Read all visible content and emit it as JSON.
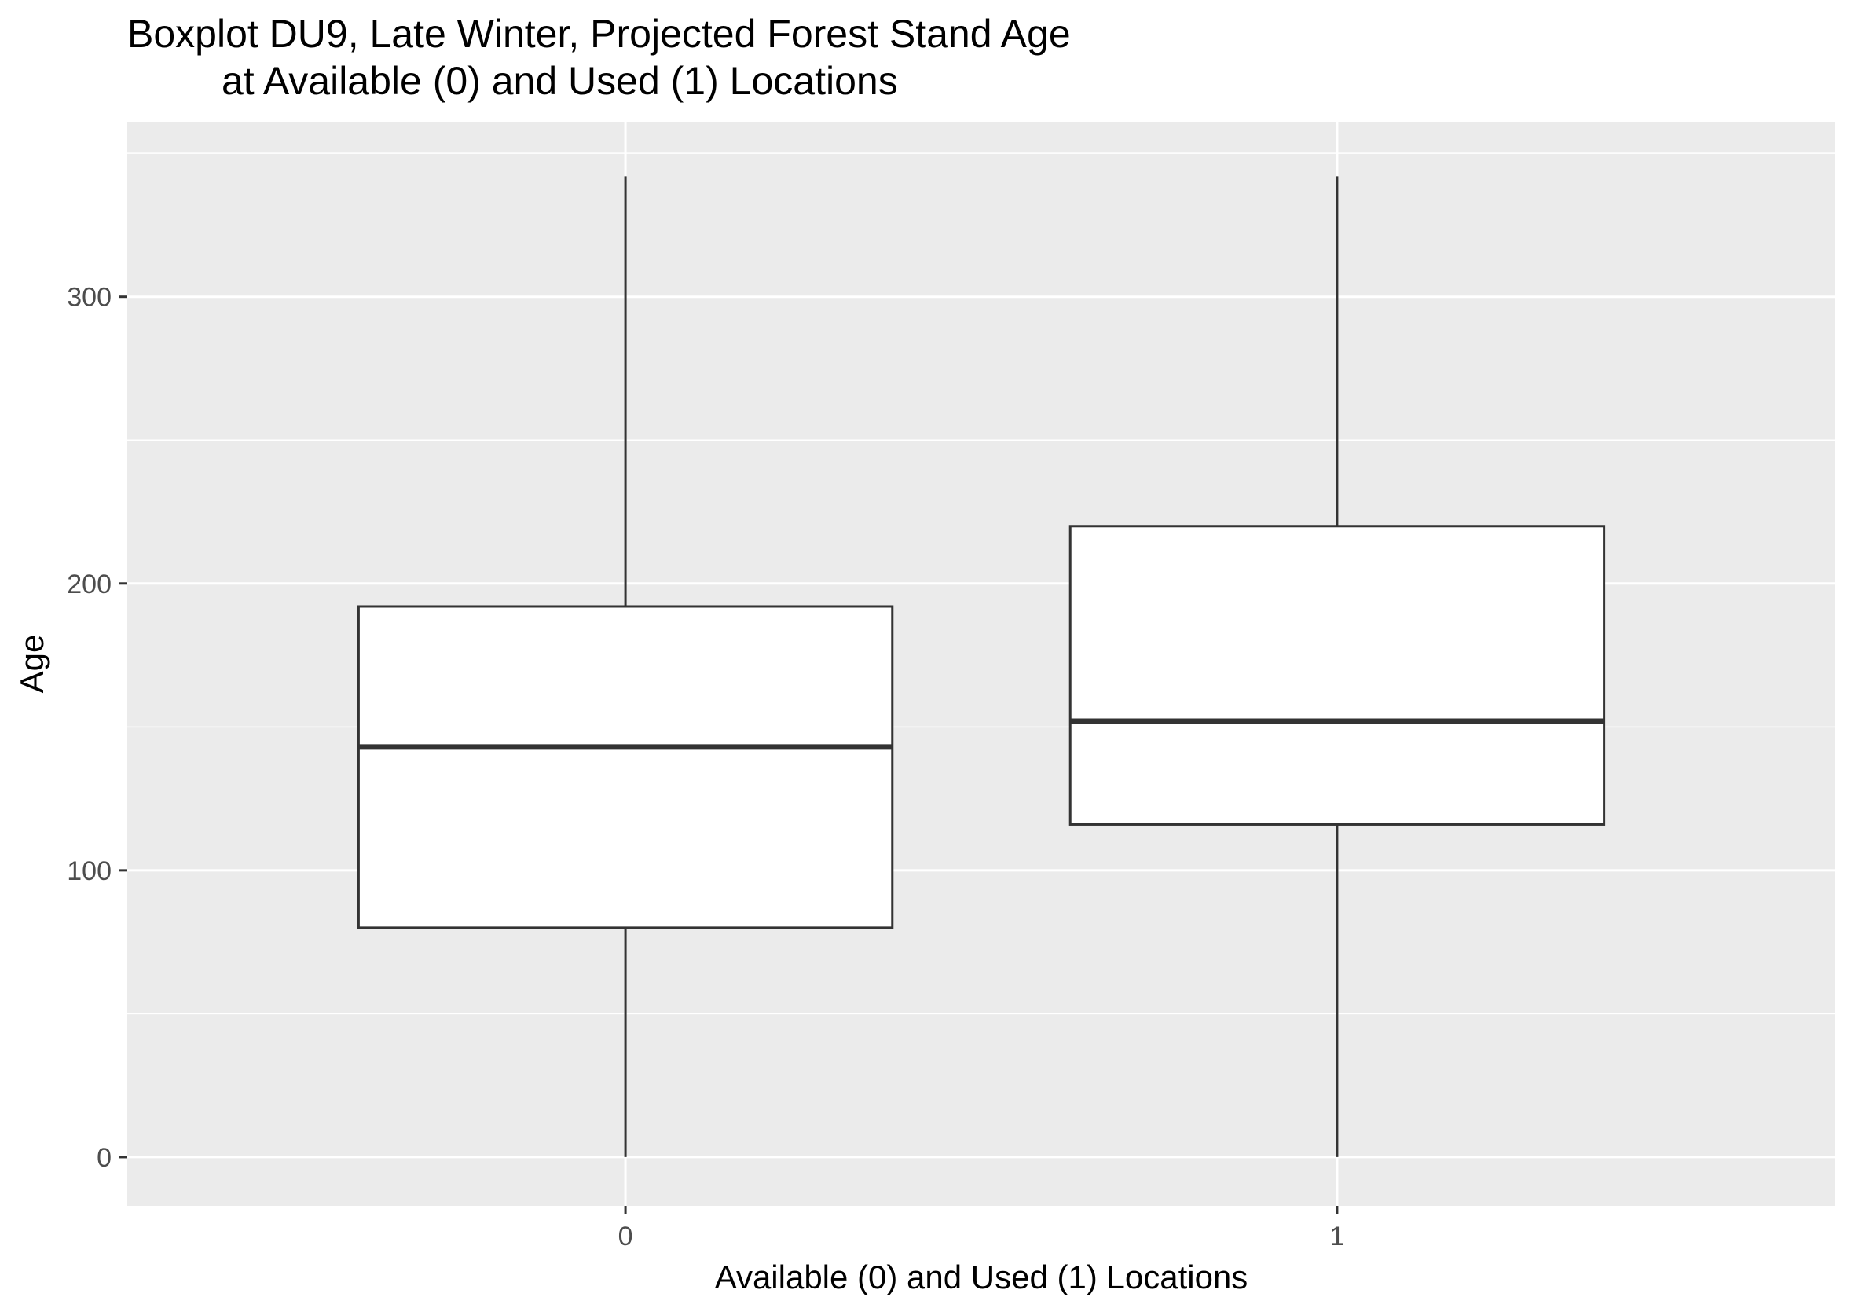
{
  "chart_data": {
    "type": "boxplot",
    "title": "Boxplot DU9, Late Winter, Projected Forest Stand Age",
    "subtitle": "at Available (0) and Used (1) Locations",
    "xlabel": "Available (0) and Used (1) Locations",
    "ylabel": "Age",
    "categories": [
      "0",
      "1"
    ],
    "boxes": [
      {
        "category": "0",
        "min": 0,
        "q1": 80,
        "median": 143,
        "q3": 192,
        "max": 342
      },
      {
        "category": "1",
        "min": 0,
        "q1": 116,
        "median": 152,
        "q3": 220,
        "max": 342
      }
    ],
    "y_ticks": [
      0,
      100,
      200,
      300
    ],
    "ylim": [
      -17,
      361
    ],
    "grid": true,
    "legend": "none",
    "colors": {
      "panel_background": "#ebebeb",
      "grid": "#ffffff",
      "box_fill": "#ffffff",
      "box_stroke": "#333333",
      "tick_label": "#4d4d4d",
      "tick_mark": "#333333"
    }
  }
}
